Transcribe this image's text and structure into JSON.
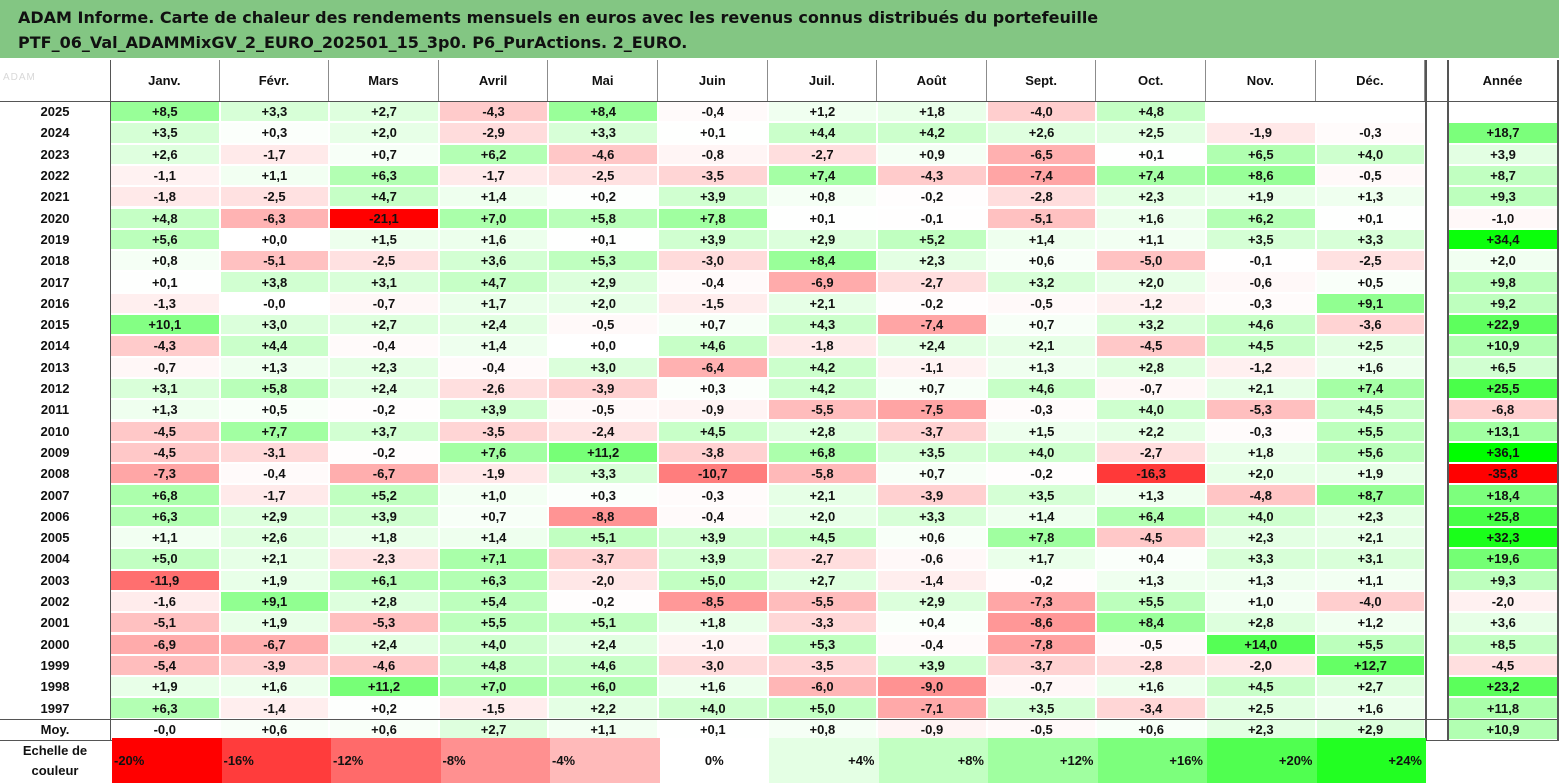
{
  "header": {
    "line1": "ADAM Informe. Carte de chaleur des rendements mensuels en euros avec les revenus connus distribués du portefeuille",
    "line2": "PTF_06_Val_ADAMMixGV_2_EURO_202501_15_3p0. P6_PurActions. 2_EURO."
  },
  "chart_data": {
    "type": "heatmap",
    "columns": [
      "Janv.",
      "Févr.",
      "Mars",
      "Avril",
      "Mai",
      "Juin",
      "Juil.",
      "Août",
      "Sept.",
      "Oct.",
      "Nov.",
      "Déc."
    ],
    "annual_column": "Année",
    "rows": [
      {
        "label": "2025",
        "values": [
          "+8,5",
          "+3,3",
          "+2,7",
          "-4,3",
          "+8,4",
          "-0,4",
          "+1,2",
          "+1,8",
          "-4,0",
          "+4,8",
          "",
          ""
        ],
        "year": ""
      },
      {
        "label": "2024",
        "values": [
          "+3,5",
          "+0,3",
          "+2,0",
          "-2,9",
          "+3,3",
          "+0,1",
          "+4,4",
          "+4,2",
          "+2,6",
          "+2,5",
          "-1,9",
          "-0,3"
        ],
        "year": "+18,7"
      },
      {
        "label": "2023",
        "values": [
          "+2,6",
          "-1,7",
          "+0,7",
          "+6,2",
          "-4,6",
          "-0,8",
          "-2,7",
          "+0,9",
          "-6,5",
          "+0,1",
          "+6,5",
          "+4,0"
        ],
        "year": "+3,9"
      },
      {
        "label": "2022",
        "values": [
          "-1,1",
          "+1,1",
          "+6,3",
          "-1,7",
          "-2,5",
          "-3,5",
          "+7,4",
          "-4,3",
          "-7,4",
          "+7,4",
          "+8,6",
          "-0,5"
        ],
        "year": "+8,7"
      },
      {
        "label": "2021",
        "values": [
          "-1,8",
          "-2,5",
          "+4,7",
          "+1,4",
          "+0,2",
          "+3,9",
          "+0,8",
          "-0,2",
          "-2,8",
          "+2,3",
          "+1,9",
          "+1,3"
        ],
        "year": "+9,3"
      },
      {
        "label": "2020",
        "values": [
          "+4,8",
          "-6,3",
          "-21,1",
          "+7,0",
          "+5,8",
          "+7,8",
          "+0,1",
          "-0,1",
          "-5,1",
          "+1,6",
          "+6,2",
          "+0,1"
        ],
        "year": "-1,0"
      },
      {
        "label": "2019",
        "values": [
          "+5,6",
          "+0,0",
          "+1,5",
          "+1,6",
          "+0,1",
          "+3,9",
          "+2,9",
          "+5,2",
          "+1,4",
          "+1,1",
          "+3,5",
          "+3,3"
        ],
        "year": "+34,4"
      },
      {
        "label": "2018",
        "values": [
          "+0,8",
          "-5,1",
          "-2,5",
          "+3,6",
          "+5,3",
          "-3,0",
          "+8,4",
          "+2,3",
          "+0,6",
          "-5,0",
          "-0,1",
          "-2,5"
        ],
        "year": "+2,0"
      },
      {
        "label": "2017",
        "values": [
          "+0,1",
          "+3,8",
          "+3,1",
          "+4,7",
          "+2,9",
          "-0,4",
          "-6,9",
          "-2,7",
          "+3,2",
          "+2,0",
          "-0,6",
          "+0,5"
        ],
        "year": "+9,8"
      },
      {
        "label": "2016",
        "values": [
          "-1,3",
          "-0,0",
          "-0,7",
          "+1,7",
          "+2,0",
          "-1,5",
          "+2,1",
          "-0,2",
          "-0,5",
          "-1,2",
          "-0,3",
          "+9,1"
        ],
        "year": "+9,2"
      },
      {
        "label": "2015",
        "values": [
          "+10,1",
          "+3,0",
          "+2,7",
          "+2,4",
          "-0,5",
          "+0,7",
          "+4,3",
          "-7,4",
          "+0,7",
          "+3,2",
          "+4,6",
          "-3,6"
        ],
        "year": "+22,9"
      },
      {
        "label": "2014",
        "values": [
          "-4,3",
          "+4,4",
          "-0,4",
          "+1,4",
          "+0,0",
          "+4,6",
          "-1,8",
          "+2,4",
          "+2,1",
          "-4,5",
          "+4,5",
          "+2,5"
        ],
        "year": "+10,9"
      },
      {
        "label": "2013",
        "values": [
          "-0,7",
          "+1,3",
          "+2,3",
          "-0,4",
          "+3,0",
          "-6,4",
          "+4,2",
          "-1,1",
          "+1,3",
          "+2,8",
          "-1,2",
          "+1,6"
        ],
        "year": "+6,5"
      },
      {
        "label": "2012",
        "values": [
          "+3,1",
          "+5,8",
          "+2,4",
          "-2,6",
          "-3,9",
          "+0,3",
          "+4,2",
          "+0,7",
          "+4,6",
          "-0,7",
          "+2,1",
          "+7,4"
        ],
        "year": "+25,5"
      },
      {
        "label": "2011",
        "values": [
          "+1,3",
          "+0,5",
          "-0,2",
          "+3,9",
          "-0,5",
          "-0,9",
          "-5,5",
          "-7,5",
          "-0,3",
          "+4,0",
          "-5,3",
          "+4,5"
        ],
        "year": "-6,8"
      },
      {
        "label": "2010",
        "values": [
          "-4,5",
          "+7,7",
          "+3,7",
          "-3,5",
          "-2,4",
          "+4,5",
          "+2,8",
          "-3,7",
          "+1,5",
          "+2,2",
          "-0,3",
          "+5,5"
        ],
        "year": "+13,1"
      },
      {
        "label": "2009",
        "values": [
          "-4,5",
          "-3,1",
          "-0,2",
          "+7,6",
          "+11,2",
          "-3,8",
          "+6,8",
          "+3,5",
          "+4,0",
          "-2,7",
          "+1,8",
          "+5,6"
        ],
        "year": "+36,1"
      },
      {
        "label": "2008",
        "values": [
          "-7,3",
          "-0,4",
          "-6,7",
          "-1,9",
          "+3,3",
          "-10,7",
          "-5,8",
          "+0,7",
          "-0,2",
          "-16,3",
          "+2,0",
          "+1,9"
        ],
        "year": "-35,8"
      },
      {
        "label": "2007",
        "values": [
          "+6,8",
          "-1,7",
          "+5,2",
          "+1,0",
          "+0,3",
          "-0,3",
          "+2,1",
          "-3,9",
          "+3,5",
          "+1,3",
          "-4,8",
          "+8,7"
        ],
        "year": "+18,4"
      },
      {
        "label": "2006",
        "values": [
          "+6,3",
          "+2,9",
          "+3,9",
          "+0,7",
          "-8,8",
          "-0,4",
          "+2,0",
          "+3,3",
          "+1,4",
          "+6,4",
          "+4,0",
          "+2,3"
        ],
        "year": "+25,8"
      },
      {
        "label": "2005",
        "values": [
          "+1,1",
          "+2,6",
          "+1,8",
          "+1,4",
          "+5,1",
          "+3,9",
          "+4,5",
          "+0,6",
          "+7,8",
          "-4,5",
          "+2,3",
          "+2,1"
        ],
        "year": "+32,3"
      },
      {
        "label": "2004",
        "values": [
          "+5,0",
          "+2,1",
          "-2,3",
          "+7,1",
          "-3,7",
          "+3,9",
          "-2,7",
          "-0,6",
          "+1,7",
          "+0,4",
          "+3,3",
          "+3,1"
        ],
        "year": "+19,6"
      },
      {
        "label": "2003",
        "values": [
          "-11,9",
          "+1,9",
          "+6,1",
          "+6,3",
          "-2,0",
          "+5,0",
          "+2,7",
          "-1,4",
          "-0,2",
          "+1,3",
          "+1,3",
          "+1,1"
        ],
        "year": "+9,3"
      },
      {
        "label": "2002",
        "values": [
          "-1,6",
          "+9,1",
          "+2,8",
          "+5,4",
          "-0,2",
          "-8,5",
          "-5,5",
          "+2,9",
          "-7,3",
          "+5,5",
          "+1,0",
          "-4,0"
        ],
        "year": "-2,0"
      },
      {
        "label": "2001",
        "values": [
          "-5,1",
          "+1,9",
          "-5,3",
          "+5,5",
          "+5,1",
          "+1,8",
          "-3,3",
          "+0,4",
          "-8,6",
          "+8,4",
          "+2,8",
          "+1,2"
        ],
        "year": "+3,6"
      },
      {
        "label": "2000",
        "values": [
          "-6,9",
          "-6,7",
          "+2,4",
          "+4,0",
          "+2,4",
          "-1,0",
          "+5,3",
          "-0,4",
          "-7,8",
          "-0,5",
          "+14,0",
          "+5,5"
        ],
        "year": "+8,5"
      },
      {
        "label": "1999",
        "values": [
          "-5,4",
          "-3,9",
          "-4,6",
          "+4,8",
          "+4,6",
          "-3,0",
          "-3,5",
          "+3,9",
          "-3,7",
          "-2,8",
          "-2,0",
          "+12,7"
        ],
        "year": "-4,5"
      },
      {
        "label": "1998",
        "values": [
          "+1,9",
          "+1,6",
          "+11,2",
          "+7,0",
          "+6,0",
          "+1,6",
          "-6,0",
          "-9,0",
          "-0,7",
          "+1,6",
          "+4,5",
          "+2,7"
        ],
        "year": "+23,2"
      },
      {
        "label": "1997",
        "values": [
          "+6,3",
          "-1,4",
          "+0,2",
          "-1,5",
          "+2,2",
          "+4,0",
          "+5,0",
          "-7,1",
          "+3,5",
          "-3,4",
          "+2,5",
          "+1,6"
        ],
        "year": "+11,8"
      }
    ],
    "average_row": {
      "label": "Moy.",
      "values": [
        "-0,0",
        "+0,6",
        "+0,6",
        "+2,7",
        "+1,1",
        "+0,1",
        "+0,8",
        "-0,9",
        "-0,5",
        "+0,6",
        "+2,3",
        "+2,9"
      ],
      "year": "+10,9"
    },
    "legend": {
      "title_line1": "Echelle de",
      "title_line2": "couleur",
      "items": [
        "-20%",
        "-16%",
        "-12%",
        "-8%",
        "-4%",
        "0%",
        "+4%",
        "+8%",
        "+12%",
        "+16%",
        "+20%",
        "+24%"
      ],
      "colors": [
        "#ff0000",
        "#ff3c3c",
        "#ff6a6a",
        "#ff9090",
        "#ffbaba",
        "#ffffff",
        "#e4ffe4",
        "#c2ffc2",
        "#a0ffa0",
        "#7cff7c",
        "#50ff50",
        "#22ff22"
      ]
    },
    "colors": {
      "positive": "#00ff00",
      "negative": "#ff0000",
      "neutral": "#ffffff",
      "header_band": "#83c683"
    }
  }
}
